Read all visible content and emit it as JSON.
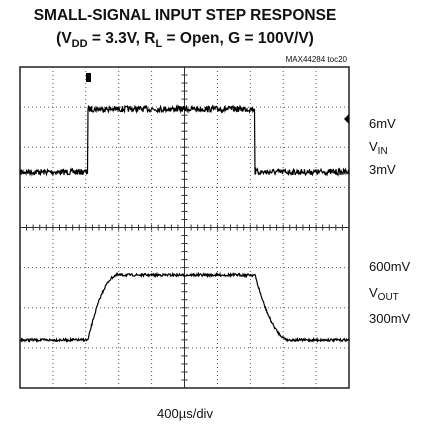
{
  "title": "SMALL-SIGNAL INPUT STEP RESPONSE",
  "subtitle": [
    {
      "text": "(V"
    },
    {
      "sub": "DD"
    },
    {
      "text": " = 3.3V, R"
    },
    {
      "sub": "L"
    },
    {
      "text": " = Open, G = 100V/V)"
    }
  ],
  "ref": "MAX44284 toc20",
  "channels": [
    {
      "top": "6mV",
      "name": "V",
      "sub": "IN",
      "bottom": "3mV"
    },
    {
      "top": "600mV",
      "name": "V",
      "sub": "OUT",
      "bottom": "300mV"
    }
  ],
  "timebase": "400µs/div"
}
